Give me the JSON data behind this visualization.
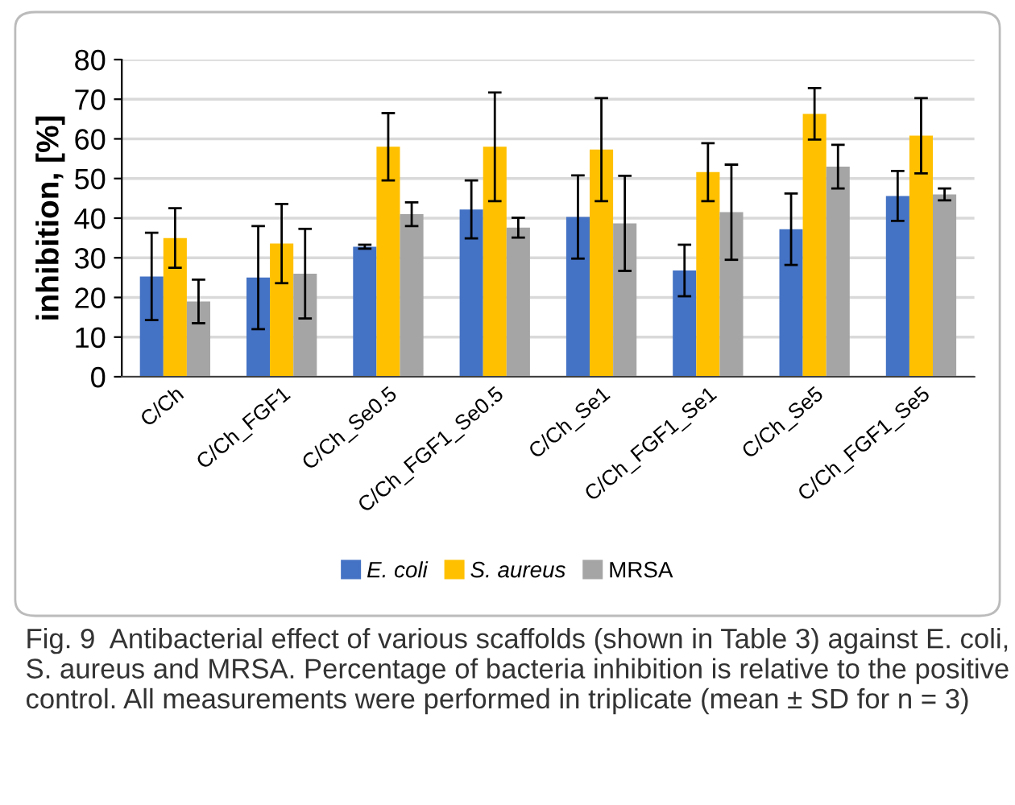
{
  "chart_data": {
    "type": "bar",
    "ylabel": "inhibition, [%]",
    "categories": [
      "C/Ch",
      "C/Ch_FGF1",
      "C/Ch_Se0.5",
      "C/Ch_FGF1_Se0.5",
      "C/Ch_Se1",
      "C/Ch_FGF1_Se1",
      "C/Ch_Se5",
      "C/Ch_FGF1_Se5"
    ],
    "series": [
      {
        "name": "E. coli",
        "color": "#4472c4",
        "values": [
          25.3,
          25,
          32.8,
          42.2,
          40.3,
          26.8,
          37.2,
          45.6
        ],
        "errors": [
          11,
          13,
          0.5,
          7.3,
          10.5,
          6.5,
          9,
          6.3
        ]
      },
      {
        "name": "S. aureus",
        "color": "#ffc000",
        "values": [
          35,
          33.6,
          58,
          58,
          57.3,
          51.6,
          66.3,
          60.8
        ],
        "errors": [
          7.5,
          10,
          8.5,
          13.7,
          13,
          7.3,
          6.5,
          9.5
        ]
      },
      {
        "name": "MRSA",
        "color": "#a5a5a5",
        "values": [
          19,
          26,
          41,
          37.6,
          38.7,
          41.5,
          53,
          46
        ],
        "errors": [
          5.5,
          11.3,
          3,
          2.5,
          12,
          12,
          5.5,
          1.5
        ]
      }
    ],
    "ylim": [
      0,
      80
    ],
    "yticks": [
      0,
      10,
      20,
      30,
      40,
      50,
      60,
      70,
      80
    ],
    "grid": "y",
    "legend": "bottom",
    "annotations": [
      "Fig. 9  Antibacterial effect of various scaffolds (shown in Table 3) against E. coli, S. aureus and MRSA. Percentage of bacteria inhibition is relative to the positive control. All measurements were performed in triplicate (mean ± SD for n = 3)"
    ]
  }
}
